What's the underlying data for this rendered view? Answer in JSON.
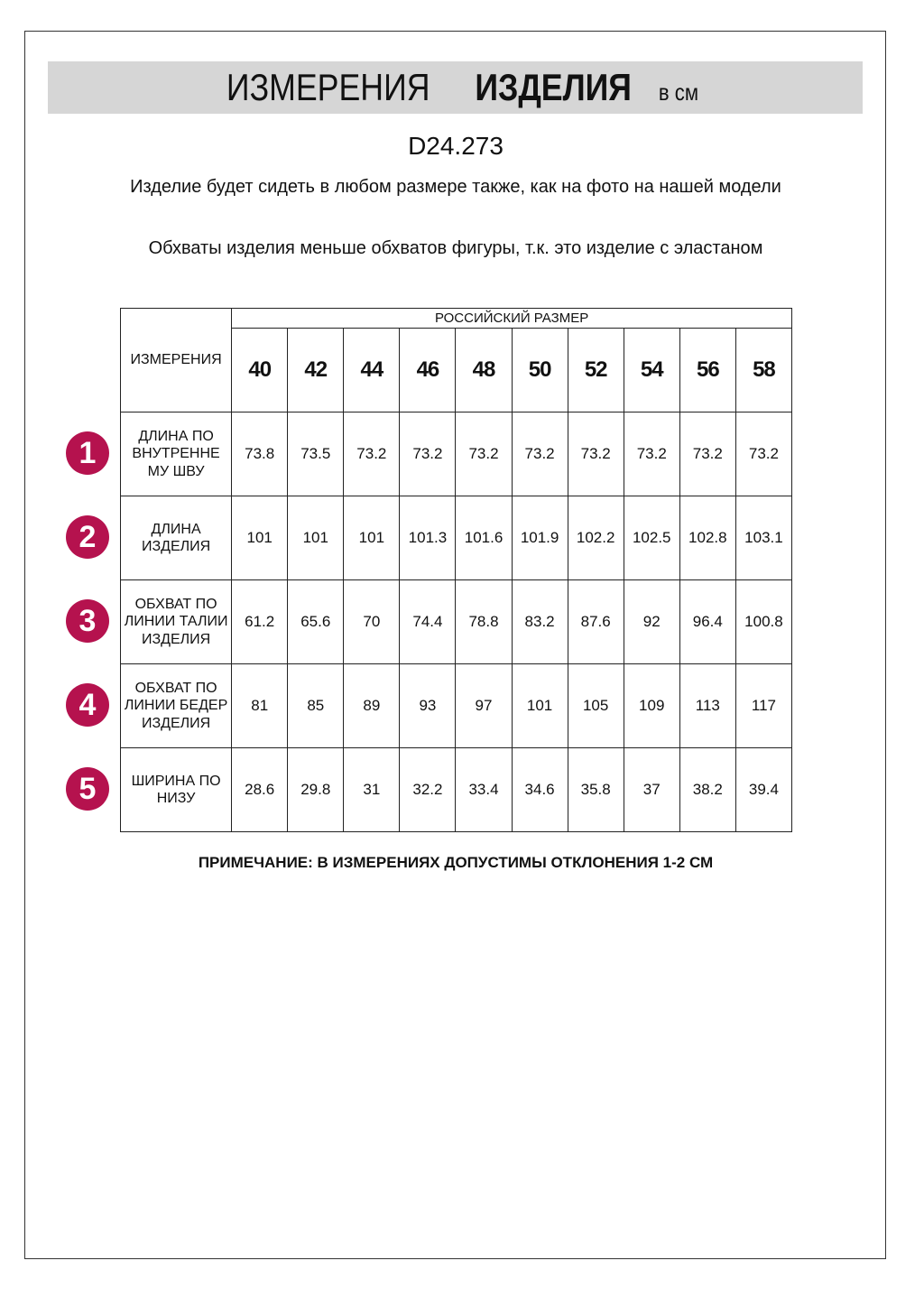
{
  "header": {
    "title_regular": "ИЗМЕРЕНИЯ",
    "title_bold": "ИЗДЕЛИЯ",
    "unit": "в см"
  },
  "product_code": "D24.273",
  "notes": [
    "Изделие будет сидеть в любом размере также, как на фото на нашей модели",
    "Обхваты изделия меньше обхватов фигуры, т.к. это изделие с эластаном"
  ],
  "table": {
    "corner_label": "ИЗМЕРЕНИЯ",
    "size_group_label": "РОССИЙСКИЙ РАЗМЕР",
    "sizes": [
      "40",
      "42",
      "44",
      "46",
      "48",
      "50",
      "52",
      "54",
      "56",
      "58"
    ],
    "rows": [
      {
        "num": "1",
        "label": "ДЛИНА ПО ВНУТРЕННЕ МУ ШВУ",
        "values": [
          "73.8",
          "73.5",
          "73.2",
          "73.2",
          "73.2",
          "73.2",
          "73.2",
          "73.2",
          "73.2",
          "73.2"
        ]
      },
      {
        "num": "2",
        "label": "ДЛИНА ИЗДЕЛИЯ",
        "values": [
          "101",
          "101",
          "101",
          "101.3",
          "101.6",
          "101.9",
          "102.2",
          "102.5",
          "102.8",
          "103.1"
        ]
      },
      {
        "num": "3",
        "label": "ОБХВАТ ПО ЛИНИИ ТАЛИИ ИЗДЕЛИЯ",
        "values": [
          "61.2",
          "65.6",
          "70",
          "74.4",
          "78.8",
          "83.2",
          "87.6",
          "92",
          "96.4",
          "100.8"
        ]
      },
      {
        "num": "4",
        "label": "ОБХВАТ ПО ЛИНИИ БЕДЕР ИЗДЕЛИЯ",
        "values": [
          "81",
          "85",
          "89",
          "93",
          "97",
          "101",
          "105",
          "109",
          "113",
          "117"
        ]
      },
      {
        "num": "5",
        "label": "ШИРИНА ПО НИЗУ",
        "values": [
          "28.6",
          "29.8",
          "31",
          "32.2",
          "33.4",
          "34.6",
          "35.8",
          "37",
          "38.2",
          "39.4"
        ]
      }
    ]
  },
  "footnote": "ПРИМЕЧАНИЕ: В ИЗМЕРЕНИЯХ ДОПУСТИМЫ ОТКЛОНЕНИЯ 1-2 СМ",
  "colors": {
    "banner": "#d6d6d6",
    "badge": "#b5124e"
  }
}
